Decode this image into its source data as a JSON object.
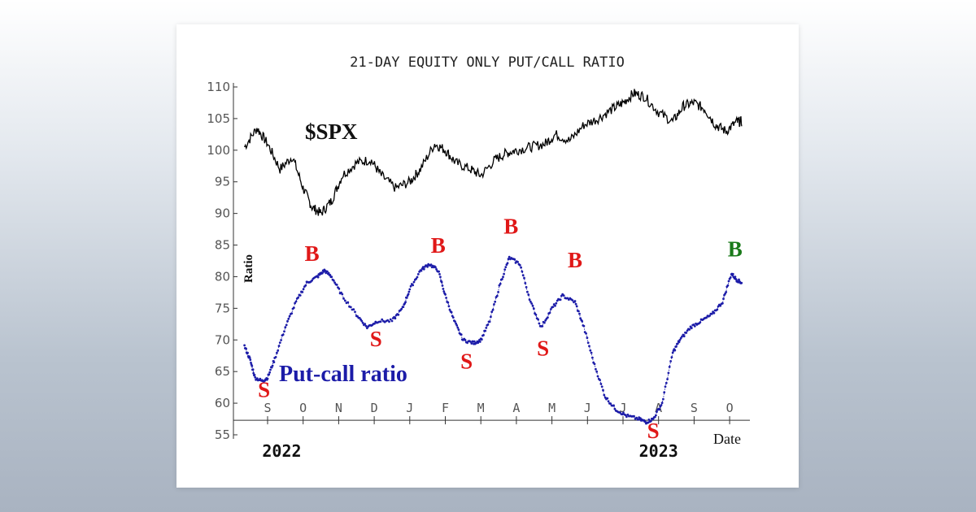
{
  "chart_data": {
    "type": "line",
    "title": "21-DAY EQUITY ONLY PUT/CALL RATIO",
    "ylabel": "Ratio",
    "xlabel": "Date",
    "ylim": [
      55,
      110
    ],
    "yticks": [
      "55",
      "60",
      "65",
      "70",
      "75",
      "80",
      "85",
      "90",
      "95",
      "100",
      "105",
      "110"
    ],
    "months": [
      "S",
      "O",
      "N",
      "D",
      "J",
      "F",
      "M",
      "A",
      "M",
      "J",
      "J",
      "A",
      "S",
      "O"
    ],
    "years": [
      {
        "label": "2022",
        "month_index": 0.4
      },
      {
        "label": "2023",
        "month_index": 11.0
      }
    ],
    "series": [
      {
        "name": "$SPX",
        "color": "#000000",
        "x": [
          -0.65,
          -0.3,
          0.0,
          0.35,
          0.7,
          1.0,
          1.25,
          1.5,
          1.8,
          2.1,
          2.5,
          2.9,
          3.2,
          3.6,
          4.0,
          4.3,
          4.7,
          5.0,
          5.3,
          5.7,
          6.0,
          6.4,
          6.7,
          7.0,
          7.4,
          7.8,
          8.1,
          8.5,
          8.9,
          9.3,
          9.7,
          10.0,
          10.3,
          10.6,
          11.0,
          11.4,
          11.7,
          12.0,
          12.3,
          12.6,
          12.9,
          13.2,
          13.35
        ],
        "values": [
          100.5,
          103.5,
          101,
          97,
          99,
          94,
          91,
          90,
          92,
          96,
          98,
          98.5,
          96,
          94,
          95,
          97,
          101,
          100,
          98,
          97,
          96,
          98.5,
          99.5,
          100,
          100.5,
          101,
          102.5,
          101.5,
          104,
          105,
          106.5,
          107.5,
          109,
          108.5,
          106,
          104.5,
          107,
          107.5,
          106.5,
          104,
          103,
          104.5,
          104.5
        ]
      },
      {
        "name": "Put-call ratio",
        "color": "#1c1ca8",
        "x": [
          -0.65,
          -0.5,
          -0.35,
          -0.15,
          0.0,
          0.2,
          0.5,
          0.8,
          1.1,
          1.4,
          1.6,
          1.8,
          2.1,
          2.5,
          2.8,
          3.1,
          3.5,
          3.8,
          4.0,
          4.3,
          4.55,
          4.8,
          5.0,
          5.25,
          5.5,
          5.8,
          6.0,
          6.25,
          6.55,
          6.8,
          7.1,
          7.4,
          7.7,
          8.0,
          8.3,
          8.65,
          8.9,
          9.2,
          9.5,
          9.8,
          10.1,
          10.45,
          10.65,
          10.85,
          11.1,
          11.4,
          11.6,
          11.9,
          12.2,
          12.5,
          12.8,
          13.05,
          13.2,
          13.35
        ],
        "values": [
          69,
          67,
          64,
          63.5,
          64,
          67,
          72,
          76,
          79,
          80,
          81,
          80,
          77,
          74,
          72,
          73,
          73,
          75,
          78,
          81,
          82,
          81,
          77,
          73,
          70,
          69.5,
          70,
          73,
          79,
          83,
          82,
          76,
          72,
          75,
          77,
          76,
          72,
          66,
          61,
          59,
          58,
          57.5,
          57,
          57.5,
          60,
          68,
          70,
          72,
          73,
          74,
          76,
          80.5,
          79.5,
          79
        ]
      }
    ],
    "annotations": [
      {
        "label": "$SPX",
        "color": "#111111"
      },
      {
        "label": "Put-call ratio",
        "color": "#1c1ca8"
      },
      {
        "label": "S",
        "color": "#e01818",
        "month_index": -0.1,
        "value": 61
      },
      {
        "label": "B",
        "color": "#e01818",
        "month_index": 1.25,
        "value": 82.5
      },
      {
        "label": "S",
        "color": "#e01818",
        "month_index": 3.05,
        "value": 69
      },
      {
        "label": "B",
        "color": "#e01818",
        "month_index": 4.8,
        "value": 83.8
      },
      {
        "label": "S",
        "color": "#e01818",
        "month_index": 5.6,
        "value": 65.5
      },
      {
        "label": "B",
        "color": "#e01818",
        "month_index": 6.85,
        "value": 86.8
      },
      {
        "label": "S",
        "color": "#e01818",
        "month_index": 7.75,
        "value": 67.5
      },
      {
        "label": "B",
        "color": "#e01818",
        "month_index": 8.65,
        "value": 81.5
      },
      {
        "label": "S",
        "color": "#e01818",
        "month_index": 10.85,
        "value": 54.5
      },
      {
        "label": "B",
        "color": "#1a7a1a",
        "month_index": 13.15,
        "value": 83.2
      }
    ]
  }
}
